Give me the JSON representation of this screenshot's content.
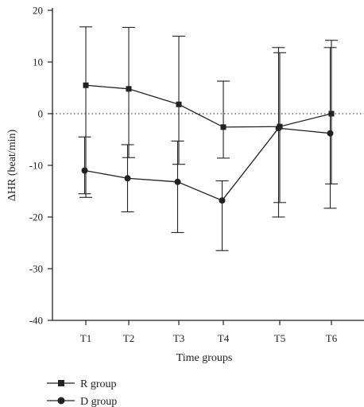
{
  "chart_data": {
    "type": "line",
    "xlabel": "Time groups",
    "ylabel": "ΔHR (beat/min)",
    "categories": [
      "T1",
      "T2",
      "T3",
      "T4",
      "T5",
      "T6"
    ],
    "ylim": [
      -40,
      20
    ],
    "yticks": [
      -40,
      -30,
      -20,
      -10,
      0,
      10,
      20
    ],
    "reference_line": 0,
    "grid": false,
    "legend_position": "bottom-left",
    "series": [
      {
        "name": "R group",
        "marker": "square",
        "values": [
          5.5,
          4.8,
          1.8,
          -2.6,
          -2.5,
          0
        ],
        "err_low": [
          -16.2,
          -8.5,
          -9.8,
          -8.6,
          -17.2,
          -13.6
        ],
        "err_high": [
          16.8,
          16.7,
          15.0,
          6.3,
          11.8,
          14.2
        ]
      },
      {
        "name": "D group",
        "marker": "circle",
        "values": [
          -11.0,
          -12.5,
          -13.2,
          -16.8,
          -2.8,
          -3.8
        ],
        "err_low": [
          -15.5,
          -19.0,
          -23.0,
          -26.5,
          -20.0,
          -18.3
        ],
        "err_high": [
          -4.5,
          -6.0,
          -5.3,
          -13.0,
          12.8,
          12.8
        ]
      }
    ]
  }
}
